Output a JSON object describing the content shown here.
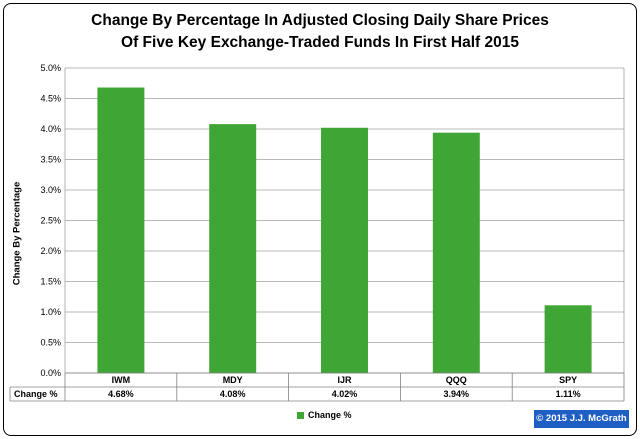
{
  "chart_data": {
    "type": "bar",
    "title_line1": "Change By Percentage In Adjusted Closing Daily Share Prices",
    "title_line2": "Of Five Key Exchange-Traded Funds In First Half 2015",
    "ylabel": "Change By Percentage",
    "ylim": [
      0,
      5
    ],
    "yticks": [
      "0.0%",
      "0.5%",
      "1.0%",
      "1.5%",
      "2.0%",
      "2.5%",
      "3.0%",
      "3.5%",
      "4.0%",
      "4.5%",
      "5.0%"
    ],
    "categories": [
      "IWM",
      "MDY",
      "IJR",
      "QQQ",
      "SPY"
    ],
    "series": [
      {
        "name": "Change %",
        "values": [
          4.68,
          4.08,
          4.02,
          3.94,
          1.11
        ],
        "labels": [
          "4.68%",
          "4.08%",
          "4.02%",
          "3.94%",
          "1.11%"
        ],
        "color": "#3fa535"
      }
    ],
    "grid": true,
    "legend_position": "bottom",
    "data_table": true
  },
  "copyright": "© 2015 J.J. McGrath"
}
